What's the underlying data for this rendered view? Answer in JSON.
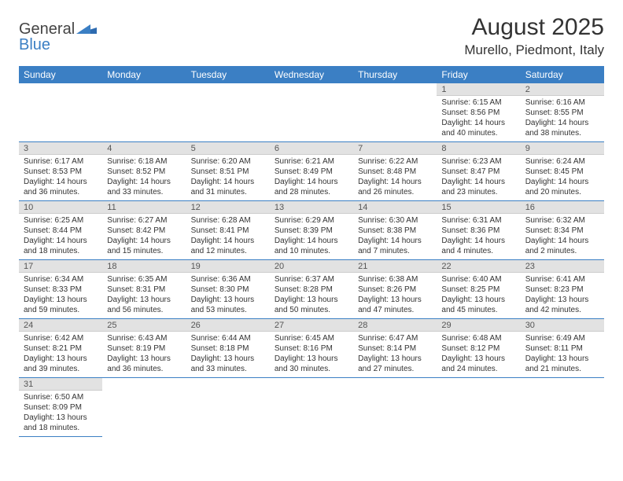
{
  "logo": {
    "text1": "General",
    "text2": "Blue"
  },
  "title": "August 2025",
  "subtitle": "Murello, Piedmont, Italy",
  "colors": {
    "header_bg": "#3b7fc4",
    "header_fg": "#ffffff",
    "daynum_bg": "#e2e2e2",
    "rule": "#3b7fc4"
  },
  "weekdays": [
    "Sunday",
    "Monday",
    "Tuesday",
    "Wednesday",
    "Thursday",
    "Friday",
    "Saturday"
  ],
  "weeks": [
    [
      null,
      null,
      null,
      null,
      null,
      {
        "n": "1",
        "sr": "Sunrise: 6:15 AM",
        "ss": "Sunset: 8:56 PM",
        "dl": "Daylight: 14 hours and 40 minutes."
      },
      {
        "n": "2",
        "sr": "Sunrise: 6:16 AM",
        "ss": "Sunset: 8:55 PM",
        "dl": "Daylight: 14 hours and 38 minutes."
      }
    ],
    [
      {
        "n": "3",
        "sr": "Sunrise: 6:17 AM",
        "ss": "Sunset: 8:53 PM",
        "dl": "Daylight: 14 hours and 36 minutes."
      },
      {
        "n": "4",
        "sr": "Sunrise: 6:18 AM",
        "ss": "Sunset: 8:52 PM",
        "dl": "Daylight: 14 hours and 33 minutes."
      },
      {
        "n": "5",
        "sr": "Sunrise: 6:20 AM",
        "ss": "Sunset: 8:51 PM",
        "dl": "Daylight: 14 hours and 31 minutes."
      },
      {
        "n": "6",
        "sr": "Sunrise: 6:21 AM",
        "ss": "Sunset: 8:49 PM",
        "dl": "Daylight: 14 hours and 28 minutes."
      },
      {
        "n": "7",
        "sr": "Sunrise: 6:22 AM",
        "ss": "Sunset: 8:48 PM",
        "dl": "Daylight: 14 hours and 26 minutes."
      },
      {
        "n": "8",
        "sr": "Sunrise: 6:23 AM",
        "ss": "Sunset: 8:47 PM",
        "dl": "Daylight: 14 hours and 23 minutes."
      },
      {
        "n": "9",
        "sr": "Sunrise: 6:24 AM",
        "ss": "Sunset: 8:45 PM",
        "dl": "Daylight: 14 hours and 20 minutes."
      }
    ],
    [
      {
        "n": "10",
        "sr": "Sunrise: 6:25 AM",
        "ss": "Sunset: 8:44 PM",
        "dl": "Daylight: 14 hours and 18 minutes."
      },
      {
        "n": "11",
        "sr": "Sunrise: 6:27 AM",
        "ss": "Sunset: 8:42 PM",
        "dl": "Daylight: 14 hours and 15 minutes."
      },
      {
        "n": "12",
        "sr": "Sunrise: 6:28 AM",
        "ss": "Sunset: 8:41 PM",
        "dl": "Daylight: 14 hours and 12 minutes."
      },
      {
        "n": "13",
        "sr": "Sunrise: 6:29 AM",
        "ss": "Sunset: 8:39 PM",
        "dl": "Daylight: 14 hours and 10 minutes."
      },
      {
        "n": "14",
        "sr": "Sunrise: 6:30 AM",
        "ss": "Sunset: 8:38 PM",
        "dl": "Daylight: 14 hours and 7 minutes."
      },
      {
        "n": "15",
        "sr": "Sunrise: 6:31 AM",
        "ss": "Sunset: 8:36 PM",
        "dl": "Daylight: 14 hours and 4 minutes."
      },
      {
        "n": "16",
        "sr": "Sunrise: 6:32 AM",
        "ss": "Sunset: 8:34 PM",
        "dl": "Daylight: 14 hours and 2 minutes."
      }
    ],
    [
      {
        "n": "17",
        "sr": "Sunrise: 6:34 AM",
        "ss": "Sunset: 8:33 PM",
        "dl": "Daylight: 13 hours and 59 minutes."
      },
      {
        "n": "18",
        "sr": "Sunrise: 6:35 AM",
        "ss": "Sunset: 8:31 PM",
        "dl": "Daylight: 13 hours and 56 minutes."
      },
      {
        "n": "19",
        "sr": "Sunrise: 6:36 AM",
        "ss": "Sunset: 8:30 PM",
        "dl": "Daylight: 13 hours and 53 minutes."
      },
      {
        "n": "20",
        "sr": "Sunrise: 6:37 AM",
        "ss": "Sunset: 8:28 PM",
        "dl": "Daylight: 13 hours and 50 minutes."
      },
      {
        "n": "21",
        "sr": "Sunrise: 6:38 AM",
        "ss": "Sunset: 8:26 PM",
        "dl": "Daylight: 13 hours and 47 minutes."
      },
      {
        "n": "22",
        "sr": "Sunrise: 6:40 AM",
        "ss": "Sunset: 8:25 PM",
        "dl": "Daylight: 13 hours and 45 minutes."
      },
      {
        "n": "23",
        "sr": "Sunrise: 6:41 AM",
        "ss": "Sunset: 8:23 PM",
        "dl": "Daylight: 13 hours and 42 minutes."
      }
    ],
    [
      {
        "n": "24",
        "sr": "Sunrise: 6:42 AM",
        "ss": "Sunset: 8:21 PM",
        "dl": "Daylight: 13 hours and 39 minutes."
      },
      {
        "n": "25",
        "sr": "Sunrise: 6:43 AM",
        "ss": "Sunset: 8:19 PM",
        "dl": "Daylight: 13 hours and 36 minutes."
      },
      {
        "n": "26",
        "sr": "Sunrise: 6:44 AM",
        "ss": "Sunset: 8:18 PM",
        "dl": "Daylight: 13 hours and 33 minutes."
      },
      {
        "n": "27",
        "sr": "Sunrise: 6:45 AM",
        "ss": "Sunset: 8:16 PM",
        "dl": "Daylight: 13 hours and 30 minutes."
      },
      {
        "n": "28",
        "sr": "Sunrise: 6:47 AM",
        "ss": "Sunset: 8:14 PM",
        "dl": "Daylight: 13 hours and 27 minutes."
      },
      {
        "n": "29",
        "sr": "Sunrise: 6:48 AM",
        "ss": "Sunset: 8:12 PM",
        "dl": "Daylight: 13 hours and 24 minutes."
      },
      {
        "n": "30",
        "sr": "Sunrise: 6:49 AM",
        "ss": "Sunset: 8:11 PM",
        "dl": "Daylight: 13 hours and 21 minutes."
      }
    ],
    [
      {
        "n": "31",
        "sr": "Sunrise: 6:50 AM",
        "ss": "Sunset: 8:09 PM",
        "dl": "Daylight: 13 hours and 18 minutes."
      },
      null,
      null,
      null,
      null,
      null,
      null
    ]
  ]
}
